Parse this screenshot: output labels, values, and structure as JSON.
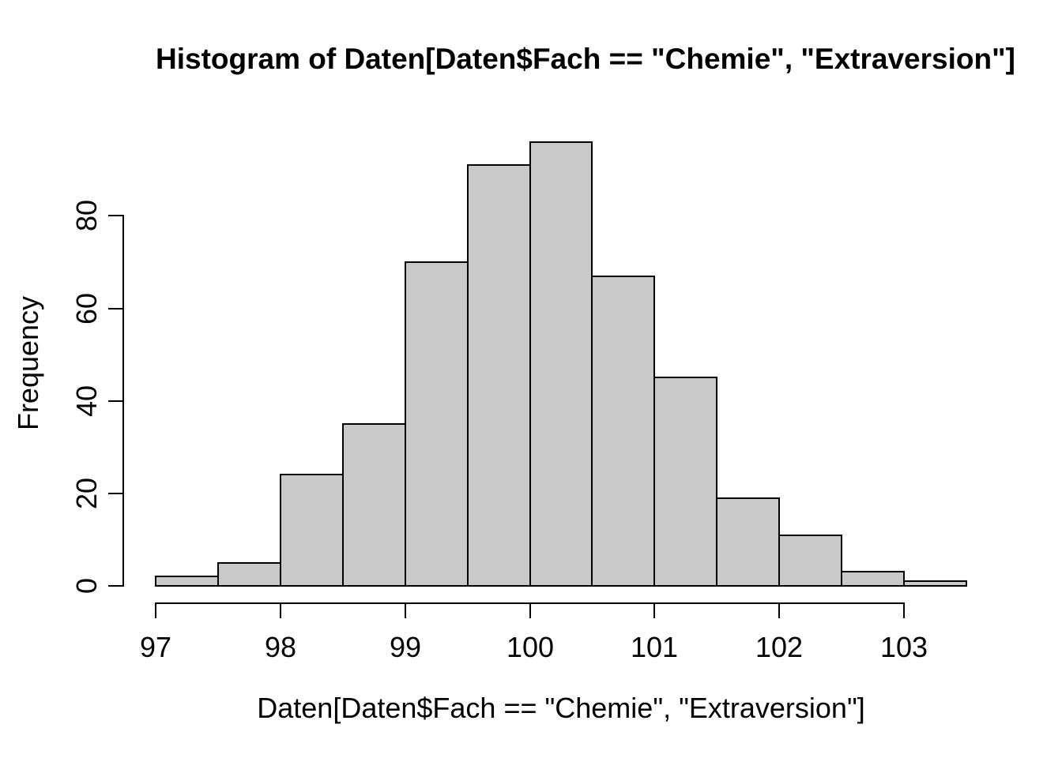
{
  "chart_data": {
    "type": "bar",
    "subtype": "histogram",
    "title": "Histogram of Daten[Daten$Fach == \"Chemie\", \"Extraversion\"]",
    "xlabel": "Daten[Daten$Fach == \"Chemie\", \"Extraversion\"]",
    "ylabel": "Frequency",
    "bin_breaks": [
      97,
      97.5,
      98,
      98.5,
      99,
      99.5,
      100,
      100.5,
      101,
      101.5,
      102,
      102.5,
      103,
      103.5
    ],
    "counts": [
      2,
      5,
      24,
      35,
      70,
      91,
      96,
      67,
      45,
      19,
      11,
      3,
      1
    ],
    "x_ticks": [
      97,
      98,
      99,
      100,
      101,
      102,
      103
    ],
    "y_ticks": [
      0,
      20,
      40,
      60,
      80
    ],
    "xlim": [
      97,
      103.5
    ],
    "ylim": [
      0,
      96
    ],
    "grid": false,
    "legend": null,
    "bar_fill": "#C9C9C9",
    "bar_border": "#000000",
    "axis_color": "#000000",
    "background": "#FFFFFF"
  }
}
